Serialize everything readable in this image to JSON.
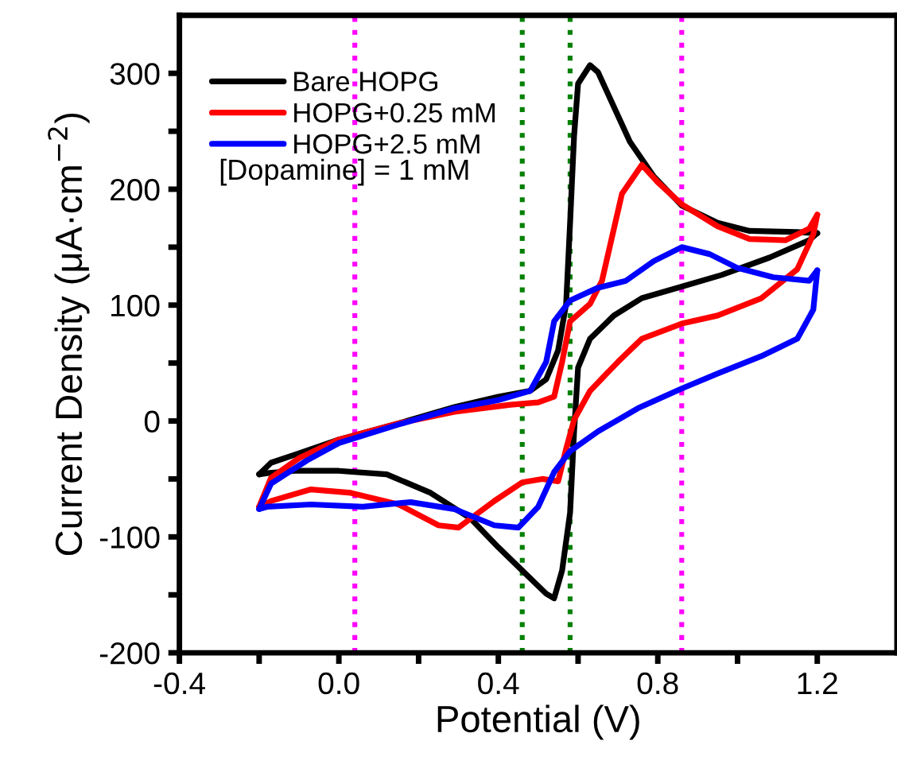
{
  "chart_data": {
    "type": "line",
    "xlabel": "Potential (V)",
    "ylabel": "Current Density (μA·cm$^{−2}$)",
    "xlim": [
      -0.4,
      1.4
    ],
    "ylim": [
      -200,
      350
    ],
    "xticks": [
      -0.4,
      {
        "value": -0.2,
        "label": null
      },
      {
        "value": 0,
        "label": "0.0"
      },
      {
        "value": 0.2,
        "label": null
      },
      0.4,
      {
        "value": 0.6,
        "label": null
      },
      0.8,
      {
        "value": 1.0,
        "label": null
      },
      1.2
    ],
    "yticks": [
      -200,
      {
        "value": -150,
        "label": null
      },
      -100,
      {
        "value": -50,
        "label": null
      },
      0,
      {
        "value": 50,
        "label": null
      },
      100,
      {
        "value": 150,
        "label": null
      },
      200,
      {
        "value": 250,
        "label": null
      },
      300
    ],
    "grid": false,
    "legend": "top left",
    "marker": "none",
    "line_style": "solid",
    "annotations": [
      "[Dopamine] = 1 mM"
    ],
    "ref_lines": [
      {
        "axis": "x",
        "value": 0.04,
        "label": null,
        "color": "#ff00ff",
        "line_style": "dotted"
      },
      {
        "axis": "x",
        "value": 0.46,
        "label": null,
        "color": "#008000",
        "line_style": "dotted"
      },
      {
        "axis": "x",
        "value": 0.58,
        "label": null,
        "color": "#008000",
        "line_style": "dotted"
      },
      {
        "axis": "x",
        "value": 0.86,
        "label": null,
        "color": "#ff00ff",
        "line_style": "dotted"
      }
    ],
    "series": [
      {
        "name": "Bare HOPG",
        "color": "#000000",
        "x": [
          -0.2,
          -0.17,
          -0.11,
          0.0,
          0.15,
          0.29,
          0.4,
          0.48,
          0.52,
          0.55,
          0.57,
          0.58,
          0.59,
          0.6,
          0.63,
          0.65,
          0.69,
          0.73,
          0.79,
          0.86,
          0.95,
          1.03,
          1.15,
          1.2
        ],
        "values": [
          -46,
          -36,
          -29,
          -16,
          -2,
          12,
          21,
          26,
          36,
          61,
          101,
          171,
          246,
          291,
          307,
          301,
          271,
          241,
          211,
          186,
          171,
          164,
          163,
          162
        ]
      },
      {
        "color": "#000000",
        "x": [
          1.2,
          1.18,
          1.08,
          0.96,
          0.86,
          0.76,
          0.69,
          0.63,
          0.6,
          0.59,
          0.58,
          0.56,
          0.54,
          0.52,
          0.46,
          0.4,
          0.33,
          0.23,
          0.12,
          0.0,
          -0.11,
          -0.18,
          -0.2
        ],
        "values": [
          162,
          156,
          141,
          126,
          116,
          106,
          91,
          71,
          46,
          -9,
          -79,
          -129,
          -153,
          -149,
          -129,
          -109,
          -84,
          -62,
          -46,
          -43,
          -43,
          -45,
          -46
        ]
      },
      {
        "name": "HOPG+0.25 mM",
        "color": "#ff0000",
        "x": [
          -0.2,
          -0.17,
          -0.1,
          0.0,
          0.15,
          0.29,
          0.43,
          0.5,
          0.54,
          0.56,
          0.58,
          0.63,
          0.66,
          0.68,
          0.71,
          0.76,
          0.8,
          0.86,
          0.95,
          1.03,
          1.12,
          1.18,
          1.2
        ],
        "values": [
          -74,
          -49,
          -32,
          -16,
          -2,
          8,
          14,
          16,
          21,
          51,
          86,
          101,
          121,
          151,
          196,
          221,
          206,
          187,
          168,
          157,
          156,
          166,
          178
        ]
      },
      {
        "color": "#ff0000",
        "x": [
          1.2,
          1.19,
          1.15,
          1.06,
          0.95,
          0.86,
          0.76,
          0.7,
          0.63,
          0.59,
          0.57,
          0.55,
          0.51,
          0.46,
          0.39,
          0.3,
          0.25,
          0.15,
          0.03,
          -0.07,
          -0.17,
          -0.2
        ],
        "values": [
          178,
          161,
          131,
          106,
          91,
          84,
          71,
          51,
          26,
          1,
          -24,
          -52,
          -50,
          -53,
          -69,
          -92,
          -90,
          -72,
          -62,
          -59,
          -69,
          -74
        ]
      },
      {
        "name": "HOPG+2.5 mM",
        "color": "#0000ff",
        "x": [
          -0.2,
          -0.17,
          -0.08,
          0.0,
          0.15,
          0.29,
          0.4,
          0.48,
          0.52,
          0.54,
          0.58,
          0.65,
          0.72,
          0.79,
          0.86,
          0.93,
          1.0,
          1.09,
          1.18,
          1.2
        ],
        "values": [
          -76,
          -54,
          -34,
          -19,
          -3,
          11,
          18,
          26,
          51,
          86,
          104,
          115,
          121,
          138,
          150,
          144,
          132,
          124,
          121,
          130
        ]
      },
      {
        "color": "#0000ff",
        "x": [
          1.2,
          1.19,
          1.15,
          1.06,
          0.95,
          0.86,
          0.75,
          0.65,
          0.58,
          0.54,
          0.5,
          0.45,
          0.39,
          0.29,
          0.18,
          0.06,
          -0.07,
          -0.18,
          -0.2
        ],
        "values": [
          130,
          96,
          71,
          56,
          41,
          28,
          11,
          -9,
          -26,
          -44,
          -74,
          -92,
          -90,
          -76,
          -70,
          -74,
          -72,
          -74,
          -76
        ]
      }
    ]
  }
}
